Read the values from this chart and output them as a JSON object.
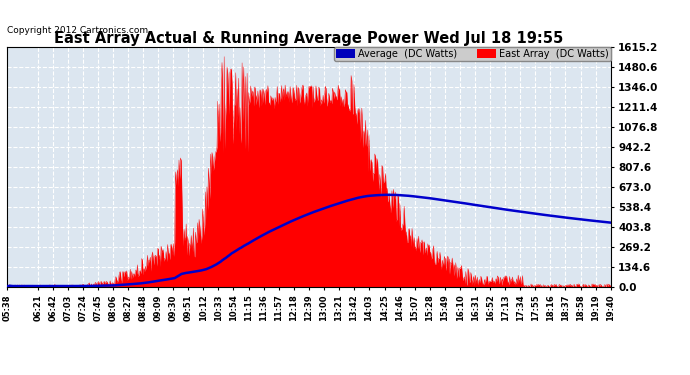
{
  "title": "East Array Actual & Running Average Power Wed Jul 18 19:55",
  "copyright": "Copyright 2012 Cartronics.com",
  "legend_avg": "Average  (DC Watts)",
  "legend_east": "East Array  (DC Watts)",
  "ylabel_values": [
    0.0,
    134.6,
    269.2,
    403.8,
    538.4,
    673.0,
    807.6,
    942.2,
    1076.8,
    1211.4,
    1346.0,
    1480.6,
    1615.2
  ],
  "ymax": 1615.2,
  "ymin": 0.0,
  "bg_color": "#ffffff",
  "plot_bg_color": "#dce6f0",
  "grid_color": "#ffffff",
  "east_array_color": "#ff0000",
  "avg_color": "#0000cc",
  "title_color": "#000000",
  "tick_times": [
    "05:38",
    "06:21",
    "06:42",
    "07:03",
    "07:24",
    "07:45",
    "08:06",
    "08:27",
    "08:48",
    "09:09",
    "09:30",
    "09:51",
    "10:12",
    "10:33",
    "10:54",
    "11:15",
    "11:36",
    "11:57",
    "12:18",
    "12:39",
    "13:00",
    "13:21",
    "13:42",
    "14:03",
    "14:25",
    "14:46",
    "15:07",
    "15:28",
    "15:49",
    "16:10",
    "16:31",
    "16:52",
    "17:13",
    "17:34",
    "17:55",
    "18:16",
    "18:37",
    "18:58",
    "19:19",
    "19:40"
  ],
  "start_hhmm": "05:38",
  "end_hhmm": "19:40"
}
